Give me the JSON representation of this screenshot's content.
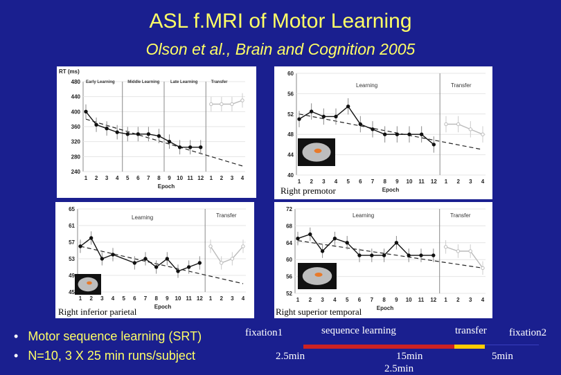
{
  "slide": {
    "title": "ASL f.MRI of Motor Learning",
    "subtitle": "Olson et al., Brain and Cognition 2005"
  },
  "bullets": [
    "Motor sequence learning (SRT)",
    "N=10, 3 X 25 min runs/subject"
  ],
  "timeline": {
    "labels": [
      "fixation1",
      "sequence learning",
      "transfer",
      "fixation2"
    ],
    "durations": [
      "2.5min",
      "15min",
      "2.5min",
      "5min"
    ],
    "colors": {
      "fixation": "#1a1f8f",
      "learning": "#cc2222",
      "transfer": "#ffcc00"
    }
  },
  "chart_data": [
    {
      "type": "line",
      "panel": "rt",
      "ylabel": "RT (ms)",
      "xlabel": "Epoch",
      "phase_labels": [
        "Early Learning",
        "Middle Learning",
        "Late Learning",
        "Transfer"
      ],
      "ylim": [
        240,
        480
      ],
      "yticks": [
        240,
        280,
        320,
        360,
        400,
        440,
        480
      ],
      "x": [
        "1",
        "2",
        "3",
        "4",
        "5",
        "6",
        "7",
        "8",
        "9",
        "10",
        "11",
        "12",
        "1",
        "2",
        "3",
        "4"
      ],
      "series": [
        {
          "values": [
            400,
            365,
            355,
            345,
            340,
            340,
            340,
            335,
            320,
            305,
            305,
            305,
            null,
            null,
            null,
            null
          ]
        },
        {
          "values": [
            null,
            null,
            null,
            null,
            null,
            null,
            null,
            null,
            null,
            null,
            null,
            null,
            420,
            420,
            420,
            430
          ]
        }
      ],
      "trend": [
        [
          1,
          380
        ],
        [
          16,
          255
        ]
      ]
    },
    {
      "type": "line",
      "panel": "premotor",
      "title": "Right premotor",
      "xlabel": "Epoch",
      "phase_labels": [
        "Learning",
        "Transfer"
      ],
      "ylim": [
        40,
        60
      ],
      "yticks": [
        40,
        44,
        48,
        52,
        56,
        60
      ],
      "x": [
        "1",
        "2",
        "3",
        "4",
        "5",
        "6",
        "7",
        "8",
        "9",
        "10",
        "11",
        "12",
        "1",
        "2",
        "3",
        "4"
      ],
      "series": [
        {
          "values": [
            51,
            52.5,
            51.5,
            51.5,
            53.5,
            50,
            49,
            48,
            48,
            48,
            48,
            46,
            null,
            null,
            null,
            null
          ]
        },
        {
          "values": [
            null,
            null,
            null,
            null,
            null,
            null,
            null,
            null,
            null,
            null,
            null,
            null,
            50,
            50,
            49,
            48
          ]
        }
      ],
      "trend": [
        [
          1,
          52
        ],
        [
          16,
          45
        ]
      ]
    },
    {
      "type": "line",
      "panel": "parietal",
      "title": "Right inferior parietal",
      "xlabel": "Epoch",
      "phase_labels": [
        "Learning",
        "Transfer"
      ],
      "ylim": [
        45,
        65
      ],
      "yticks": [
        45,
        49,
        53,
        57,
        61,
        65
      ],
      "x": [
        "1",
        "2",
        "3",
        "4",
        "5",
        "6",
        "7",
        "8",
        "9",
        "10",
        "11",
        "12",
        "1",
        "2",
        "3",
        "4"
      ],
      "series": [
        {
          "values": [
            56,
            58,
            53,
            54,
            null,
            52,
            53,
            51,
            53,
            50,
            51,
            52,
            null,
            null,
            null,
            null
          ]
        },
        {
          "values": [
            null,
            null,
            null,
            null,
            null,
            null,
            null,
            null,
            null,
            null,
            null,
            null,
            56,
            52,
            53,
            56
          ]
        }
      ],
      "trend": [
        [
          1,
          56
        ],
        [
          16,
          47
        ]
      ]
    },
    {
      "type": "line",
      "panel": "temporal",
      "title": "Right superior temporal",
      "xlabel": "Epoch",
      "phase_labels": [
        "Learning",
        "Transfer"
      ],
      "ylim": [
        52,
        72
      ],
      "yticks": [
        52,
        56,
        60,
        64,
        68,
        72
      ],
      "x": [
        "1",
        "2",
        "3",
        "4",
        "5",
        "6",
        "7",
        "8",
        "9",
        "10",
        "11",
        "12",
        "1",
        "2",
        "3",
        "4"
      ],
      "series": [
        {
          "values": [
            65,
            66,
            62,
            65,
            64,
            61,
            61,
            61,
            64,
            61,
            61,
            61,
            null,
            null,
            null,
            null
          ]
        },
        {
          "values": [
            null,
            null,
            null,
            null,
            null,
            null,
            null,
            null,
            null,
            null,
            null,
            null,
            63,
            62,
            62,
            58
          ]
        }
      ],
      "trend": [
        [
          1,
          64.5
        ],
        [
          16,
          58
        ]
      ]
    }
  ]
}
